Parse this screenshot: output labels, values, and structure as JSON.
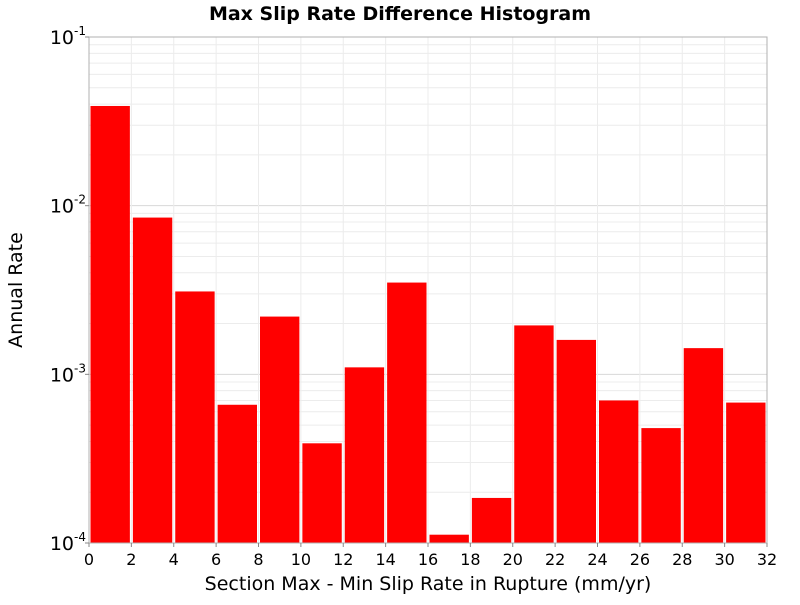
{
  "chart_data": {
    "type": "bar",
    "title": "Max Slip Rate Difference Histogram",
    "xlabel": "Section Max - Min Slip Rate in Rupture (mm/yr)",
    "ylabel": "Annual Rate",
    "xlim": [
      0,
      32
    ],
    "ylim": [
      0.0001,
      0.1
    ],
    "yscale": "log",
    "grid": true,
    "bar_color": "#ff0000",
    "bin_width": 2,
    "x_ticks": [
      "0",
      "2",
      "4",
      "6",
      "8",
      "10",
      "12",
      "14",
      "16",
      "18",
      "20",
      "22",
      "24",
      "26",
      "28",
      "30",
      "32"
    ],
    "y_ticks": [
      {
        "base": "10",
        "exp": "-4",
        "value": 0.0001
      },
      {
        "base": "10",
        "exp": "-3",
        "value": 0.001
      },
      {
        "base": "10",
        "exp": "-2",
        "value": 0.01
      },
      {
        "base": "10",
        "exp": "-1",
        "value": 0.1
      }
    ],
    "bins": [
      {
        "x": 1,
        "value": 0.039
      },
      {
        "x": 3,
        "value": 0.0085
      },
      {
        "x": 5,
        "value": 0.0031
      },
      {
        "x": 7,
        "value": 0.00066
      },
      {
        "x": 9,
        "value": 0.0022
      },
      {
        "x": 11,
        "value": 0.00039
      },
      {
        "x": 13,
        "value": 0.0011
      },
      {
        "x": 15,
        "value": 0.0035
      },
      {
        "x": 17,
        "value": 0.000112
      },
      {
        "x": 19,
        "value": 0.000185
      },
      {
        "x": 21,
        "value": 0.00195
      },
      {
        "x": 23,
        "value": 0.0016
      },
      {
        "x": 25,
        "value": 0.0007
      },
      {
        "x": 27,
        "value": 0.00048
      },
      {
        "x": 29,
        "value": 0.00143
      },
      {
        "x": 31,
        "value": 0.00068
      }
    ]
  }
}
